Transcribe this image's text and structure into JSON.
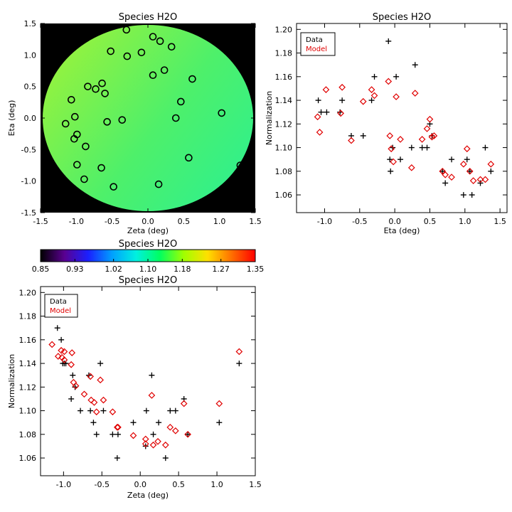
{
  "chart_data": [
    {
      "type": "scatter",
      "panel": "map",
      "title": "Species H2O",
      "xlabel": "Zeta (deg)",
      "ylabel": "Eta (deg)",
      "xlim": [
        -1.5,
        1.5
      ],
      "ylim": [
        -1.5,
        1.5
      ],
      "xticks": [
        "-1.5",
        "-1.0",
        "-0.5",
        "0.0",
        "0.5",
        "1.0",
        "1.5"
      ],
      "yticks": [
        "-1.5",
        "-1.0",
        "-0.5",
        "0.0",
        "0.5",
        "1.0",
        "1.5"
      ],
      "background": "#000000",
      "field_colors": [
        "#9cf23a",
        "#4ef06a",
        "#2ef08e"
      ],
      "marker_color": "#000000",
      "points": [
        {
          "x": -0.3,
          "y": 1.4
        },
        {
          "x": 0.07,
          "y": 1.29
        },
        {
          "x": 0.17,
          "y": 1.22
        },
        {
          "x": 0.33,
          "y": 1.13
        },
        {
          "x": -0.52,
          "y": 1.06
        },
        {
          "x": -0.09,
          "y": 1.04
        },
        {
          "x": -0.29,
          "y": 0.98
        },
        {
          "x": 0.23,
          "y": 0.76
        },
        {
          "x": 0.07,
          "y": 0.68
        },
        {
          "x": 0.62,
          "y": 0.62
        },
        {
          "x": -0.64,
          "y": 0.55
        },
        {
          "x": -0.84,
          "y": 0.5
        },
        {
          "x": -0.73,
          "y": 0.46
        },
        {
          "x": -0.6,
          "y": 0.39
        },
        {
          "x": -1.07,
          "y": 0.29
        },
        {
          "x": 0.46,
          "y": 0.26
        },
        {
          "x": -1.02,
          "y": 0.02
        },
        {
          "x": 0.39,
          "y": 0.0
        },
        {
          "x": -0.36,
          "y": -0.03
        },
        {
          "x": -0.57,
          "y": -0.06
        },
        {
          "x": 1.03,
          "y": 0.08
        },
        {
          "x": -1.15,
          "y": -0.09
        },
        {
          "x": -0.99,
          "y": -0.26
        },
        {
          "x": -1.03,
          "y": -0.33
        },
        {
          "x": -0.87,
          "y": -0.45
        },
        {
          "x": 0.57,
          "y": -0.63
        },
        {
          "x": -0.99,
          "y": -0.74
        },
        {
          "x": -0.65,
          "y": -0.79
        },
        {
          "x": -0.89,
          "y": -0.97
        },
        {
          "x": 0.15,
          "y": -1.05
        },
        {
          "x": -0.48,
          "y": -1.09
        },
        {
          "x": 1.29,
          "y": -0.75
        }
      ]
    },
    {
      "type": "scatter",
      "panel": "eta",
      "title": "Species H2O",
      "xlabel": "Eta (deg)",
      "ylabel": "Normalization",
      "xlim": [
        -1.4,
        1.6
      ],
      "ylim": [
        1.045,
        1.205
      ],
      "xticks": [
        "-1.0",
        "-0.5",
        "0.0",
        "0.5",
        "1.0",
        "1.5"
      ],
      "yticks": [
        "1.06",
        "1.08",
        "1.10",
        "1.12",
        "1.14",
        "1.16",
        "1.18",
        "1.20"
      ],
      "legend": [
        {
          "label": "Data",
          "color": "#000000"
        },
        {
          "label": "Model",
          "color": "#e00000"
        }
      ],
      "series": [
        {
          "name": "Data",
          "marker": "plus",
          "color": "#000000",
          "x": [
            -1.09,
            -1.05,
            -0.97,
            -0.78,
            -0.75,
            -0.62,
            -0.45,
            -0.33,
            -0.29,
            -0.09,
            -0.07,
            -0.06,
            -0.03,
            0.02,
            0.08,
            0.24,
            0.29,
            0.39,
            0.46,
            0.5,
            0.53,
            0.68,
            0.72,
            0.81,
            0.98,
            1.03,
            1.07,
            1.1,
            1.22,
            1.29,
            1.37
          ],
          "y": [
            1.14,
            1.13,
            1.13,
            1.13,
            1.14,
            1.11,
            1.11,
            1.14,
            1.16,
            1.19,
            1.09,
            1.08,
            1.1,
            1.16,
            1.09,
            1.1,
            1.17,
            1.1,
            1.1,
            1.12,
            1.11,
            1.08,
            1.07,
            1.09,
            1.06,
            1.09,
            1.08,
            1.06,
            1.07,
            1.1,
            1.08
          ]
        },
        {
          "name": "Model",
          "marker": "diamond",
          "color": "#e00000",
          "x": [
            -1.1,
            -1.07,
            -0.98,
            -0.77,
            -0.75,
            -0.62,
            -0.45,
            -0.33,
            -0.29,
            -0.09,
            -0.07,
            -0.05,
            -0.02,
            0.02,
            0.08,
            0.24,
            0.29,
            0.39,
            0.46,
            0.5,
            0.53,
            0.56,
            0.68,
            0.72,
            0.81,
            0.98,
            1.03,
            1.07,
            1.12,
            1.22,
            1.29,
            1.37
          ],
          "y": [
            1.126,
            1.113,
            1.149,
            1.129,
            1.151,
            1.106,
            1.139,
            1.149,
            1.144,
            1.156,
            1.11,
            1.099,
            1.088,
            1.143,
            1.107,
            1.083,
            1.146,
            1.107,
            1.116,
            1.124,
            1.109,
            1.11,
            1.08,
            1.077,
            1.075,
            1.086,
            1.099,
            1.08,
            1.072,
            1.073,
            1.073,
            1.086
          ]
        }
      ]
    },
    {
      "type": "colorbar",
      "title": "Species H2O",
      "ticks": [
        "0.85",
        "0.93",
        "1.02",
        "1.10",
        "1.18",
        "1.27",
        "1.35"
      ],
      "range": [
        0.85,
        1.35
      ],
      "colors": [
        "#000000",
        "#5a0090",
        "#1a20ff",
        "#00a0ff",
        "#00f0e0",
        "#00ff60",
        "#a0ff00",
        "#ffe000",
        "#ff7000",
        "#ff0000"
      ]
    },
    {
      "type": "scatter",
      "panel": "zeta",
      "title": "Species H2O",
      "xlabel": "Zeta (deg)",
      "ylabel": "Normalization",
      "xlim": [
        -1.3,
        1.5
      ],
      "ylim": [
        1.045,
        1.205
      ],
      "xticks": [
        "-1.0",
        "-0.5",
        "0.0",
        "0.5",
        "1.0",
        "1.5"
      ],
      "yticks": [
        "1.06",
        "1.08",
        "1.10",
        "1.12",
        "1.14",
        "1.16",
        "1.18",
        "1.20"
      ],
      "legend": [
        {
          "label": "Data",
          "color": "#000000"
        },
        {
          "label": "Model",
          "color": "#e00000"
        }
      ],
      "series": [
        {
          "name": "Data",
          "marker": "plus",
          "color": "#000000",
          "x": [
            -1.08,
            -1.03,
            -1.01,
            -0.99,
            -0.97,
            -0.9,
            -0.88,
            -0.85,
            -0.78,
            -0.67,
            -0.65,
            -0.61,
            -0.57,
            -0.52,
            -0.48,
            -0.36,
            -0.29,
            -0.3,
            -0.09,
            0.07,
            0.08,
            0.15,
            0.17,
            0.24,
            0.33,
            0.39,
            0.46,
            0.57,
            0.62,
            1.03,
            1.29
          ],
          "y": [
            1.17,
            1.16,
            1.14,
            1.14,
            1.14,
            1.11,
            1.13,
            1.12,
            1.1,
            1.13,
            1.1,
            1.09,
            1.08,
            1.14,
            1.1,
            1.08,
            1.08,
            1.06,
            1.09,
            1.07,
            1.1,
            1.13,
            1.08,
            1.09,
            1.06,
            1.1,
            1.1,
            1.11,
            1.08,
            1.09,
            1.14
          ]
        },
        {
          "name": "Model",
          "marker": "diamond",
          "color": "#e00000",
          "x": [
            -1.15,
            -1.07,
            -1.03,
            -1.02,
            -0.99,
            -0.99,
            -0.9,
            -0.89,
            -0.87,
            -0.84,
            -0.73,
            -0.65,
            -0.64,
            -0.6,
            -0.57,
            -0.52,
            -0.48,
            -0.36,
            -0.3,
            -0.29,
            -0.09,
            0.07,
            0.07,
            0.15,
            0.17,
            0.23,
            0.33,
            0.39,
            0.46,
            0.57,
            0.62,
            1.03,
            1.29
          ],
          "y": [
            1.156,
            1.146,
            1.151,
            1.145,
            1.143,
            1.15,
            1.139,
            1.149,
            1.124,
            1.121,
            1.114,
            1.129,
            1.109,
            1.107,
            1.099,
            1.126,
            1.109,
            1.099,
            1.086,
            1.086,
            1.079,
            1.076,
            1.072,
            1.113,
            1.071,
            1.074,
            1.071,
            1.086,
            1.083,
            1.106,
            1.08,
            1.106,
            1.15
          ]
        }
      ]
    }
  ]
}
